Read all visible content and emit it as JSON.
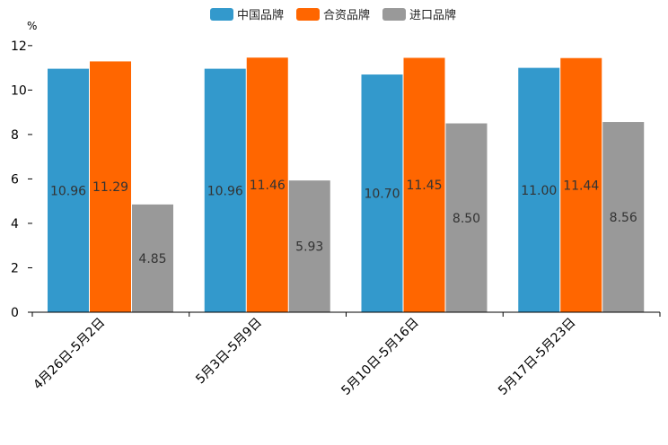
{
  "chart_data": {
    "type": "bar",
    "unit_label": "%",
    "categories": [
      "4月26日-5月2日",
      "5月3日-5月9日",
      "5月10日-5月16日",
      "5月17日-5月23日"
    ],
    "series": [
      {
        "name": "中国品牌",
        "color": "#3399CC",
        "values": [
          10.96,
          10.96,
          10.7,
          11.0
        ],
        "labels": [
          "10.96",
          "10.96",
          "10.70",
          "11.00"
        ]
      },
      {
        "name": "合资品牌",
        "color": "#FF6600",
        "values": [
          11.29,
          11.46,
          11.45,
          11.44
        ],
        "labels": [
          "11.29",
          "11.46",
          "11.45",
          "11.44"
        ]
      },
      {
        "name": "进口品牌",
        "color": "#999999",
        "values": [
          4.85,
          5.93,
          8.5,
          8.56
        ],
        "labels": [
          "4.85",
          "5.93",
          "8.50",
          "8.56"
        ]
      }
    ],
    "yticks": [
      0,
      2,
      4,
      6,
      8,
      10,
      12
    ],
    "ylim": [
      0,
      12.6
    ],
    "legend_position": "top-center",
    "grid": false
  }
}
